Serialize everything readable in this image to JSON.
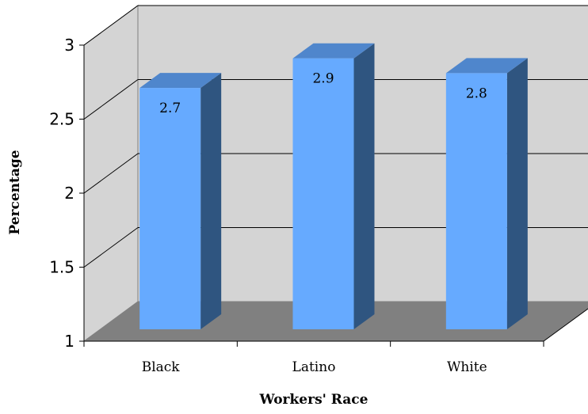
{
  "chart_data": {
    "type": "bar",
    "categories": [
      "Black",
      "Latino",
      "White"
    ],
    "values": [
      2.7,
      2.9,
      2.8
    ],
    "data_labels": [
      "2.7",
      "2.9",
      "2.8"
    ],
    "xlabel": "Workers' Race",
    "ylabel": "Percentage",
    "ylim": [
      1,
      3
    ],
    "yticks": [
      "1",
      "1.5",
      "2",
      "2.5",
      "3"
    ],
    "grid": true,
    "style": "3d-column",
    "colors": {
      "bar_front": "#66aaff",
      "bar_side": "#2f5580",
      "bar_top": "#4f86cc",
      "back_wall": "#d4d4d4",
      "floor": "#808080",
      "gridline": "#000000"
    }
  }
}
